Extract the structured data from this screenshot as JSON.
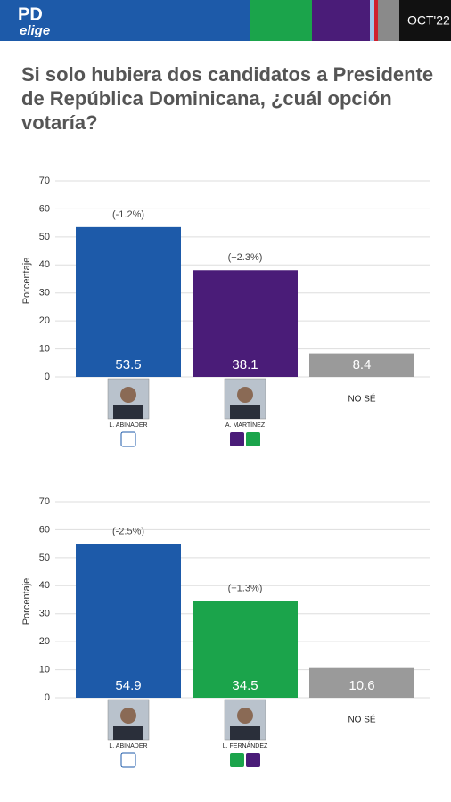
{
  "header": {
    "logo": "PD",
    "logo_sub": "elige",
    "date": "OCT'22"
  },
  "title": "Si solo hubiera dos candidatos a Presidente de República Dominicana, ¿cuál opción votaría?",
  "chart_data": [
    {
      "type": "bar",
      "y_label": "Porcentaje",
      "categories": [
        "L. ABINADER",
        "A. MARTÍNEZ",
        "NO SÉ"
      ],
      "values": [
        53.5,
        38.1,
        8.4
      ],
      "colors": [
        "#1d5aa9",
        "#4a1c78",
        "#9a9a9a"
      ],
      "annotations": [
        "(-1.2%)",
        "(+2.3%)",
        null
      ],
      "ylim": [
        0,
        70
      ],
      "yticks": [
        0,
        10,
        20,
        30,
        40,
        50,
        60,
        70
      ],
      "grid": true
    },
    {
      "type": "bar",
      "y_label": "Porcentaje",
      "categories": [
        "L. ABINADER",
        "L. FERNÁNDEZ",
        "NO SÉ"
      ],
      "values": [
        54.9,
        34.5,
        10.6
      ],
      "colors": [
        "#1d5aa9",
        "#1ba44b",
        "#9a9a9a"
      ],
      "annotations": [
        "(-2.5%)",
        "(+1.3%)",
        null
      ],
      "ylim": [
        0,
        70
      ],
      "yticks": [
        0,
        10,
        20,
        30,
        40,
        50,
        60,
        70
      ],
      "grid": true
    }
  ]
}
